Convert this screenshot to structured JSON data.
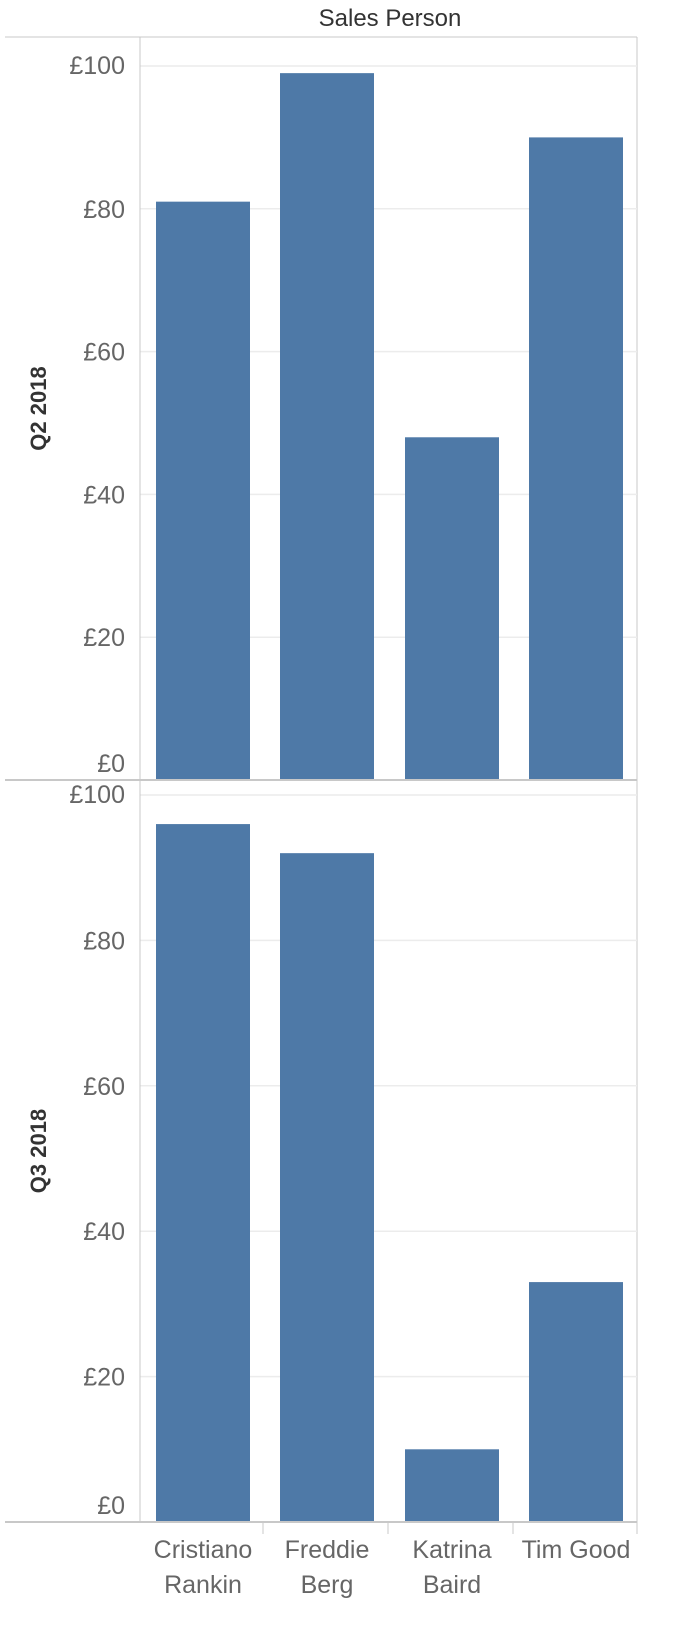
{
  "header": {
    "title": "Sales Person"
  },
  "colors": {
    "bar": "#4e79a7",
    "gridline": "#ececec",
    "axis": "#c8c8c8",
    "panel_border": "#c8c8c8",
    "tick_text": "#666666",
    "header_text": "#333333"
  },
  "chart_data": {
    "type": "bar",
    "title": "Sales Person",
    "categories": [
      "Cristiano Rankin",
      "Freddie Berg",
      "Katrina Baird",
      "Tim Good"
    ],
    "category_label_lines": [
      [
        "Cristiano",
        "Rankin"
      ],
      [
        "Freddie",
        "Berg"
      ],
      [
        "Katrina",
        "Baird"
      ],
      [
        "Tim Good"
      ]
    ],
    "y_tick_values": [
      0,
      20,
      40,
      60,
      80,
      100
    ],
    "y_tick_labels": [
      "£0",
      "£20",
      "£40",
      "£60",
      "£80",
      "£100"
    ],
    "ylim": [
      0,
      100
    ],
    "grid": true,
    "panels": [
      {
        "row_label": "Q2 2018",
        "values": [
          81,
          99,
          48,
          90
        ]
      },
      {
        "row_label": "Q3 2018",
        "values": [
          96,
          92,
          10,
          33
        ]
      }
    ]
  }
}
